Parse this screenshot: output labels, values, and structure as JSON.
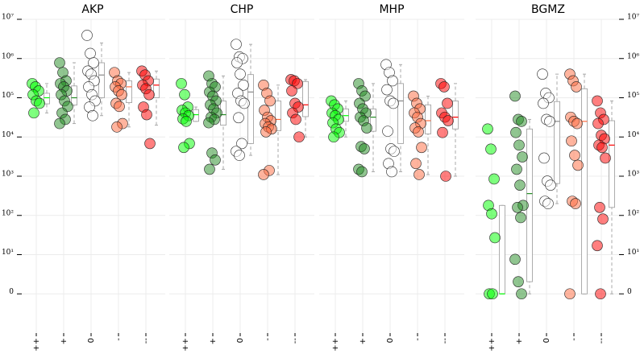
{
  "chart_data": [
    {
      "type": "strip_box",
      "title": "AKP",
      "categories": [
        "++",
        "+",
        "0",
        "-",
        "--"
      ],
      "colors": [
        "#00ff00",
        "#228b22",
        "#ffffff",
        "#ff6a3d",
        "#ff0000"
      ],
      "yscale": "symlog",
      "linthresh": 10,
      "ylim": [
        -10,
        10000000
      ],
      "ytick_side": "left",
      "grid": true,
      "yticks": [
        0,
        {
          "value": 10,
          "label": "10¹"
        },
        {
          "value": 100,
          "label": "10²"
        },
        {
          "value": 1000,
          "label": "10³"
        },
        {
          "value": 10000,
          "label": "10⁴"
        },
        {
          "value": 100000,
          "label": "10⁵"
        },
        {
          "value": 1000000,
          "label": "10⁶"
        },
        {
          "value": 10000000,
          "label": "10⁷"
        }
      ],
      "values": [
        [
          230000,
          190000,
          150000,
          120000,
          83000,
          72000,
          41000
        ],
        [
          780000,
          440000,
          270000,
          230000,
          190000,
          150000,
          120000,
          83000,
          60000,
          41000,
          28000,
          22000
        ],
        [
          3900000,
          1350000,
          780000,
          480000,
          400000,
          270000,
          190000,
          120000,
          83000,
          58000,
          35000
        ],
        [
          440000,
          270000,
          230000,
          190000,
          150000,
          120000,
          72000,
          60000,
          22000,
          18000
        ],
        [
          480000,
          380000,
          270000,
          210000,
          170000,
          120000,
          58000,
          37000,
          6800
        ]
      ],
      "boxes": [
        {
          "q1": 70000,
          "median": 100000,
          "q3": 130000,
          "whislo": 41000,
          "whishi": 230000
        },
        {
          "q1": 65000,
          "median": 100000,
          "q3": 200000,
          "whislo": 22000,
          "whishi": 780000
        },
        {
          "q1": 100000,
          "median": 380000,
          "q3": 780000,
          "whislo": 35000,
          "whishi": 2500000
        },
        {
          "q1": 75000,
          "median": 190000,
          "q3": 270000,
          "whislo": 18000,
          "whishi": 440000
        },
        {
          "q1": 100000,
          "median": 210000,
          "q3": 300000,
          "whislo": 20000,
          "whishi": 480000
        }
      ]
    },
    {
      "type": "strip_box",
      "title": "CHP",
      "categories": [
        "++",
        "+",
        "0",
        "-",
        "--"
      ],
      "colors": [
        "#00ff00",
        "#228b22",
        "#ffffff",
        "#ff6a3d",
        "#ff0000"
      ],
      "yscale": "symlog",
      "linthresh": 10,
      "ylim": [
        -10,
        10000000
      ],
      "grid": true,
      "values": [
        [
          230000,
          120000,
          58000,
          48000,
          41000,
          35000,
          29000,
          25000,
          6800,
          5400
        ],
        [
          360000,
          230000,
          190000,
          140000,
          110000,
          83000,
          66000,
          52000,
          41000,
          32000,
          28000,
          23000,
          3900,
          2600,
          1500
        ],
        [
          2300000,
          1100000,
          1000000,
          780000,
          400000,
          210000,
          130000,
          83000,
          72000,
          31000,
          6800,
          4300,
          3400
        ],
        [
          210000,
          130000,
          83000,
          48000,
          32000,
          26000,
          22000,
          18000,
          16000,
          13500,
          1400,
          1100
        ],
        [
          290000,
          270000,
          230000,
          150000,
          72000,
          58000,
          41000,
          28000,
          10000
        ]
      ],
      "boxes": [
        {
          "q1": 25000,
          "median": 37000,
          "q3": 50000,
          "whislo": 25000,
          "whishi": 58000
        },
        {
          "q1": 20000,
          "median": 37000,
          "q3": 83000,
          "whislo": 1500,
          "whishi": 360000
        },
        {
          "q1": 6800,
          "median": 140000,
          "q3": 390000,
          "whislo": 3400,
          "whishi": 2300000
        },
        {
          "q1": 14500,
          "median": 28000,
          "q3": 83000,
          "whislo": 1100,
          "whishi": 210000
        },
        {
          "q1": 33000,
          "median": 66000,
          "q3": 260000,
          "whislo": 10000,
          "whishi": 290000
        }
      ]
    },
    {
      "type": "strip_box",
      "title": "MHP",
      "categories": [
        "++",
        "+",
        "0",
        "-",
        "--"
      ],
      "colors": [
        "#00ff00",
        "#228b22",
        "#ffffff",
        "#ff6a3d",
        "#ff0000"
      ],
      "yscale": "symlog",
      "linthresh": 10,
      "ylim": [
        -10,
        10000000
      ],
      "grid": true,
      "values": [
        [
          83000,
          66000,
          52000,
          41000,
          35000,
          28000,
          23000,
          16000,
          13000,
          10000
        ],
        [
          230000,
          150000,
          110000,
          72000,
          52000,
          41000,
          32000,
          26000,
          17000,
          5700,
          5000,
          1500,
          1300
        ],
        [
          700000,
          440000,
          270000,
          160000,
          83000,
          72000,
          14000,
          5000,
          4300,
          2100,
          1300
        ],
        [
          110000,
          72000,
          52000,
          41000,
          32000,
          22000,
          17000,
          13500,
          5400,
          2100,
          1100
        ],
        [
          230000,
          190000,
          72000,
          41000,
          32000,
          26000,
          13000,
          1000
        ]
      ],
      "boxes": [
        {
          "q1": 25000,
          "median": 35000,
          "q3": 52000,
          "whislo": 10000,
          "whishi": 83000
        },
        {
          "q1": 14000,
          "median": 32000,
          "q3": 52000,
          "whislo": 1300,
          "whishi": 230000
        },
        {
          "q1": 6800,
          "median": 83000,
          "q3": 230000,
          "whislo": 1300,
          "whishi": 700000
        },
        {
          "q1": 12000,
          "median": 26000,
          "q3": 66000,
          "whislo": 1100,
          "whishi": 110000
        },
        {
          "q1": 16000,
          "median": 32000,
          "q3": 83000,
          "whislo": 1000,
          "whishi": 230000
        }
      ]
    },
    {
      "type": "strip_box",
      "title": "BGMZ",
      "categories": [
        "++",
        "+",
        "0",
        "-",
        "--"
      ],
      "colors": [
        "#00ff00",
        "#228b22",
        "#ffffff",
        "#ff6a3d",
        "#ff0000"
      ],
      "yscale": "symlog",
      "linthresh": 10,
      "ylim": [
        -10,
        10000000
      ],
      "ytick_side": "right",
      "grid": true,
      "yticks": [
        0,
        {
          "value": 10,
          "label": "10¹"
        },
        {
          "value": 100,
          "label": "10²"
        },
        {
          "value": 1000,
          "label": "10³"
        },
        {
          "value": 10000,
          "label": "10⁴"
        },
        {
          "value": 100000,
          "label": "10⁵"
        },
        {
          "value": 1000000,
          "label": "10⁶"
        },
        {
          "value": 10000000,
          "label": "10⁷"
        }
      ],
      "values": [
        [
          16000,
          4900,
          850,
          180,
          110,
          27,
          0,
          0
        ],
        [
          110000,
          28000,
          25000,
          13000,
          6200,
          3100,
          1500,
          590,
          180,
          160,
          88,
          8.8,
          3.1,
          0
        ],
        [
          400000,
          130000,
          100000,
          72000,
          28000,
          25000,
          2900,
          750,
          590,
          230,
          200
        ],
        [
          400000,
          270000,
          190000,
          32000,
          25000,
          22000,
          7900,
          3400,
          1900,
          230,
          200,
          0
        ],
        [
          83000,
          41000,
          28000,
          22000,
          11000,
          9000,
          6200,
          5400,
          2900,
          160,
          81,
          17,
          0
        ]
      ],
      "boxes": [
        {
          "q1": 0,
          "median": 0,
          "q3": 180,
          "whislo": 0,
          "whishi": 180
        },
        {
          "q1": 3.1,
          "median": 360,
          "q3": 16000,
          "whislo": 0,
          "whishi": 28000
        },
        {
          "q1": 650,
          "median": 25000,
          "q3": 80000,
          "whislo": 200,
          "whishi": 400000
        },
        {
          "q1": 0,
          "median": 25000,
          "q3": 170000,
          "whislo": 0,
          "whishi": 400000
        },
        {
          "q1": 160,
          "median": 6200,
          "q3": 26000,
          "whislo": 0,
          "whishi": 83000
        }
      ]
    }
  ]
}
